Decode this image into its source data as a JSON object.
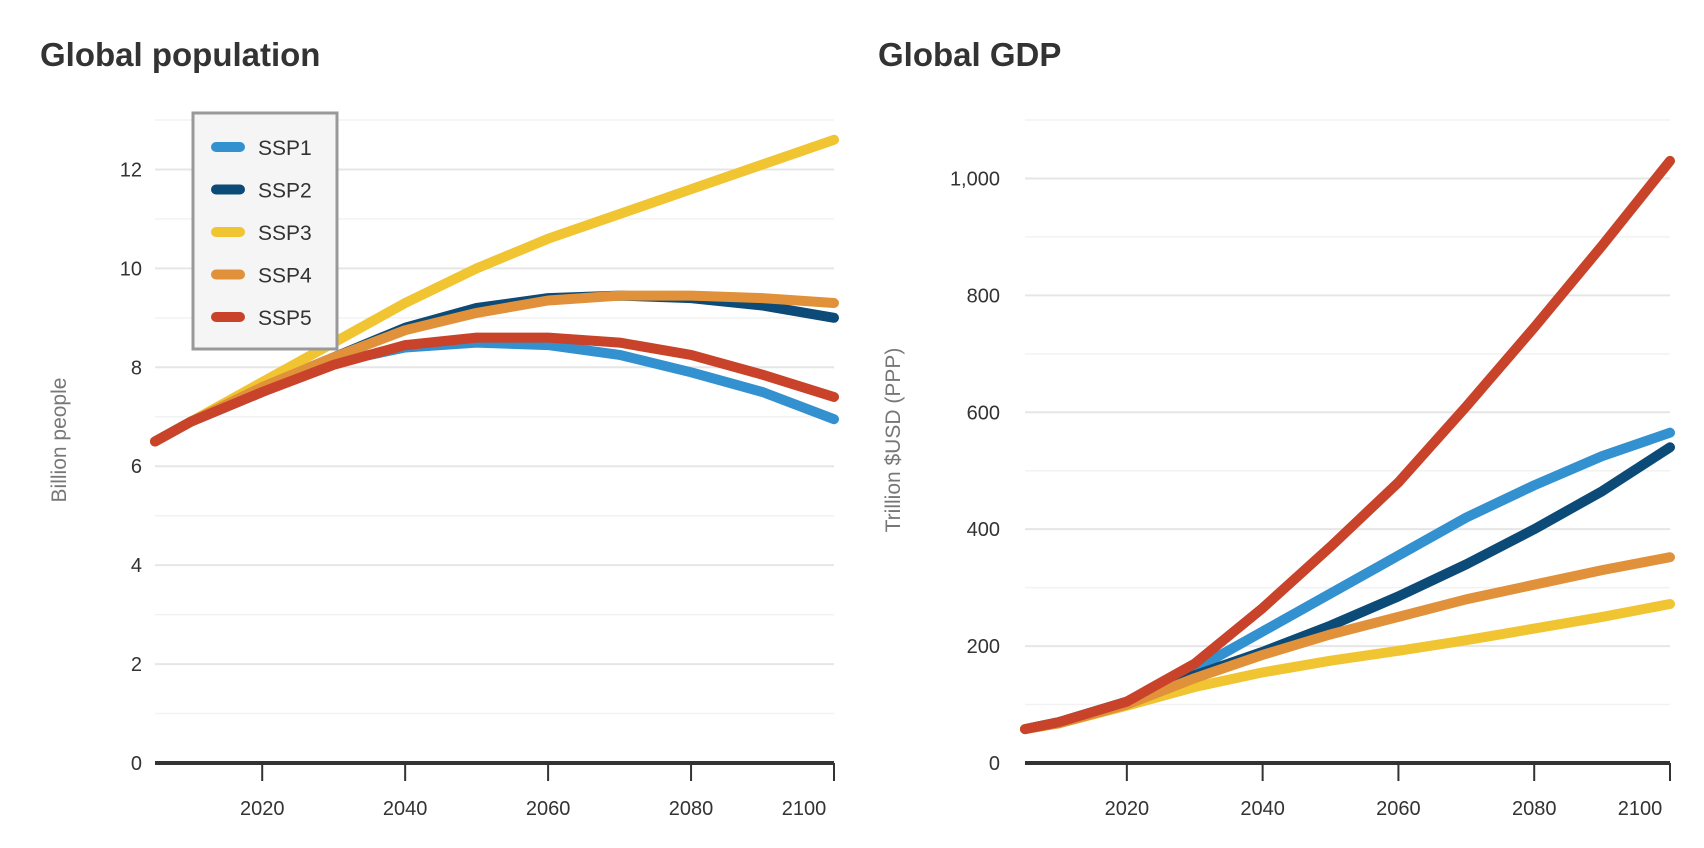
{
  "chart_data": [
    {
      "type": "line",
      "title": "Global population",
      "xlabel": "",
      "ylabel": "Billion people",
      "x": [
        2005,
        2010,
        2020,
        2030,
        2040,
        2050,
        2060,
        2070,
        2080,
        2090,
        2100
      ],
      "xticks": [
        "2020",
        "2040",
        "2060",
        "2080",
        "2100"
      ],
      "yticks": [
        "0",
        "2",
        "4",
        "6",
        "8",
        "10",
        "12"
      ],
      "ylim": [
        0,
        13
      ],
      "xlim": [
        2005,
        2100
      ],
      "grid": true,
      "legend": "top-left",
      "series": [
        {
          "name": "SSP1",
          "color": "#3391d0",
          "values": [
            6.5,
            6.9,
            7.5,
            8.1,
            8.4,
            8.5,
            8.45,
            8.25,
            7.9,
            7.5,
            6.95
          ]
        },
        {
          "name": "SSP2",
          "color": "#0c4a77",
          "values": [
            6.5,
            6.9,
            7.6,
            8.2,
            8.8,
            9.2,
            9.4,
            9.45,
            9.4,
            9.25,
            9.0
          ]
        },
        {
          "name": "SSP3",
          "color": "#f0c531",
          "values": [
            6.5,
            6.9,
            7.7,
            8.5,
            9.3,
            10.0,
            10.6,
            11.1,
            11.6,
            12.1,
            12.6
          ]
        },
        {
          "name": "SSP4",
          "color": "#e0913a",
          "values": [
            6.5,
            6.9,
            7.6,
            8.2,
            8.75,
            9.1,
            9.35,
            9.45,
            9.45,
            9.4,
            9.3
          ]
        },
        {
          "name": "SSP5",
          "color": "#c8432a",
          "values": [
            6.5,
            6.9,
            7.5,
            8.05,
            8.45,
            8.6,
            8.6,
            8.5,
            8.25,
            7.85,
            7.4
          ]
        }
      ]
    },
    {
      "type": "line",
      "title": "Global GDP",
      "xlabel": "",
      "ylabel": "Trillion $USD (PPP)",
      "x": [
        2005,
        2010,
        2020,
        2030,
        2040,
        2050,
        2060,
        2070,
        2080,
        2090,
        2100
      ],
      "xticks": [
        "2020",
        "2040",
        "2060",
        "2080",
        "2100"
      ],
      "yticks": [
        "0",
        "200",
        "400",
        "600",
        "800",
        "1,000"
      ],
      "ylim": [
        0,
        1100
      ],
      "xlim": [
        2005,
        2100
      ],
      "grid": true,
      "legend": "none",
      "series": [
        {
          "name": "SSP1",
          "color": "#3391d0",
          "values": [
            58,
            70,
            105,
            160,
            225,
            290,
            355,
            420,
            475,
            525,
            565
          ]
        },
        {
          "name": "SSP2",
          "color": "#0c4a77",
          "values": [
            58,
            70,
            105,
            150,
            190,
            235,
            285,
            340,
            400,
            465,
            540
          ]
        },
        {
          "name": "SSP3",
          "color": "#f0c531",
          "values": [
            58,
            68,
            98,
            130,
            155,
            175,
            192,
            210,
            230,
            250,
            272
          ]
        },
        {
          "name": "SSP4",
          "color": "#e0913a",
          "values": [
            58,
            68,
            100,
            145,
            185,
            220,
            250,
            280,
            305,
            330,
            352
          ]
        },
        {
          "name": "SSP5",
          "color": "#c8432a",
          "values": [
            58,
            70,
            105,
            170,
            265,
            370,
            480,
            610,
            745,
            885,
            1030
          ]
        }
      ]
    }
  ]
}
